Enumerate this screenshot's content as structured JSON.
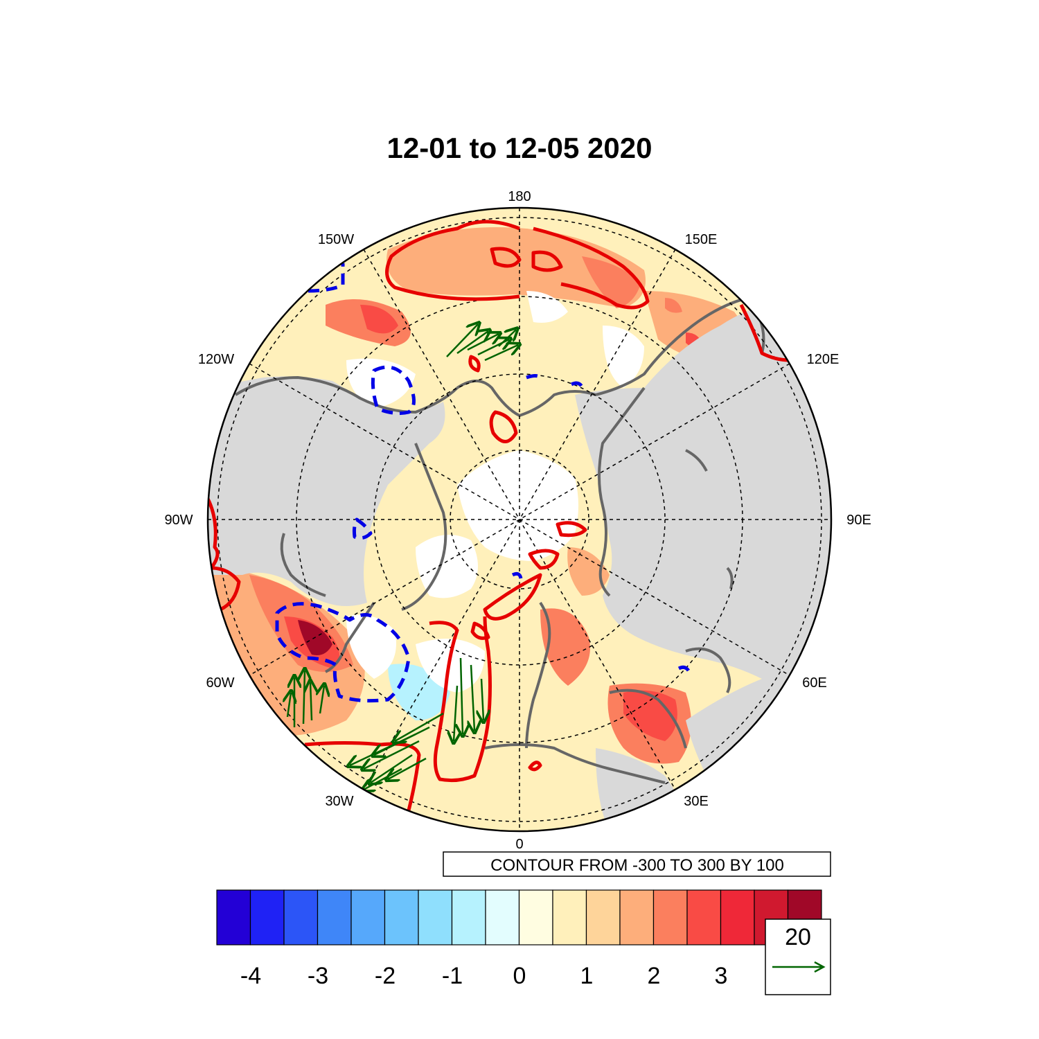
{
  "title": "12-01 to 12-05 2020",
  "longitude_labels": {
    "l180": "180",
    "l150W": "150W",
    "l150E": "150E",
    "l120W": "120W",
    "l120E": "120E",
    "l90W": "90W",
    "l90E": "90E",
    "l60W": "60W",
    "l60E": "60E",
    "l30W": "30W",
    "l30E": "30E",
    "l0": "0"
  },
  "contour_note": "CONTOUR FROM -300 TO 300 BY 100",
  "colorbar": {
    "colors": [
      "#2300d6",
      "#1f22f5",
      "#2c55f7",
      "#3f86f8",
      "#56a8fb",
      "#6cc3fc",
      "#8fdffd",
      "#b6f2fe",
      "#e3fdfe",
      "#fffde1",
      "#fff0bb",
      "#fed49a",
      "#fdae7b",
      "#fb7f5e",
      "#f94b45",
      "#ef2838",
      "#d0192f",
      "#a00828"
    ],
    "labels": {
      "l_m4": "-4",
      "l_m3": "-3",
      "l_m2": "-2",
      "l_m1": "-1",
      "l_0": "0",
      "l_1": "1",
      "l_2": "2",
      "l_3": "3"
    }
  },
  "vector_reference": {
    "magnitude": "20",
    "color": "#006400"
  },
  "colors": {
    "land": "#d9d9d9",
    "coast": "#666666",
    "positive_contour": "#e60000",
    "negative_contour": "#0000e6",
    "wind_vectors": "#006400"
  }
}
